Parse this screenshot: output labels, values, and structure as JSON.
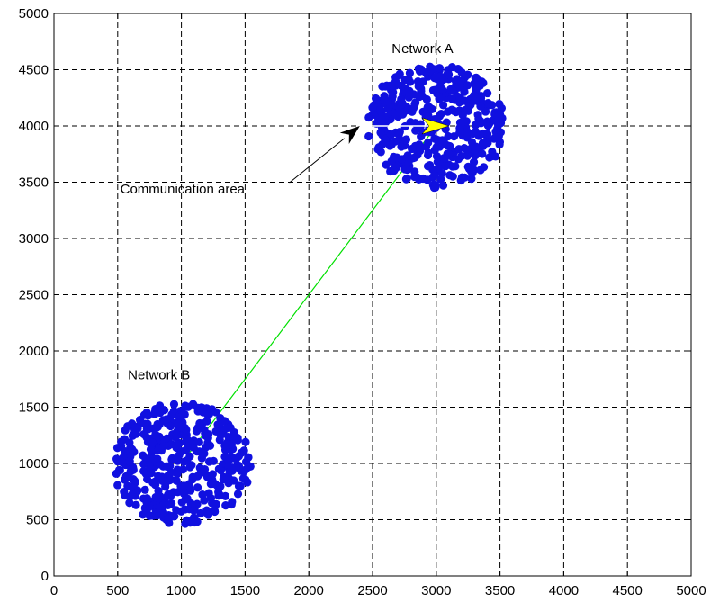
{
  "chart_data": {
    "type": "scatter",
    "xlim": [
      0,
      5000
    ],
    "ylim": [
      0,
      5000
    ],
    "x_ticks": [
      0,
      500,
      1000,
      1500,
      2000,
      2500,
      3000,
      3500,
      4000,
      4500,
      5000
    ],
    "y_ticks": [
      0,
      500,
      1000,
      1500,
      2000,
      2500,
      3000,
      3500,
      4000,
      4500,
      5000
    ],
    "x_tick_labels": [
      "0",
      "500",
      "1000",
      "1500",
      "2000",
      "2500",
      "3000",
      "3500",
      "4000",
      "4500",
      "5000"
    ],
    "y_tick_labels": [
      "0",
      "500",
      "1000",
      "1500",
      "2000",
      "2500",
      "3000",
      "3500",
      "4000",
      "4500",
      "5000"
    ],
    "grid": true,
    "grid_style": "dashed",
    "clusters": [
      {
        "id": "network-a",
        "center": [
          3000,
          4000
        ],
        "radius": 550,
        "color": "#1010e0"
      },
      {
        "id": "network-b",
        "center": [
          1000,
          1000
        ],
        "radius": 550,
        "color": "#1010e0"
      }
    ],
    "link": {
      "from": [
        1000,
        1000
      ],
      "to": [
        3000,
        4000
      ],
      "color": "#00e000"
    },
    "communication_arrow": {
      "from": [
        2400,
        4000
      ],
      "to": [
        3100,
        4000
      ],
      "color": "#ffff00"
    },
    "annotations": [
      {
        "id": "network-a-label",
        "text": "Network A",
        "x": 2650,
        "y": 4650
      },
      {
        "id": "network-b-label",
        "text": "Network B",
        "x": 580,
        "y": 1750
      },
      {
        "id": "communication-area-label",
        "text": "Communication area",
        "x": 520,
        "y": 3400,
        "arrow_to": [
          2400,
          4000
        ]
      }
    ]
  }
}
